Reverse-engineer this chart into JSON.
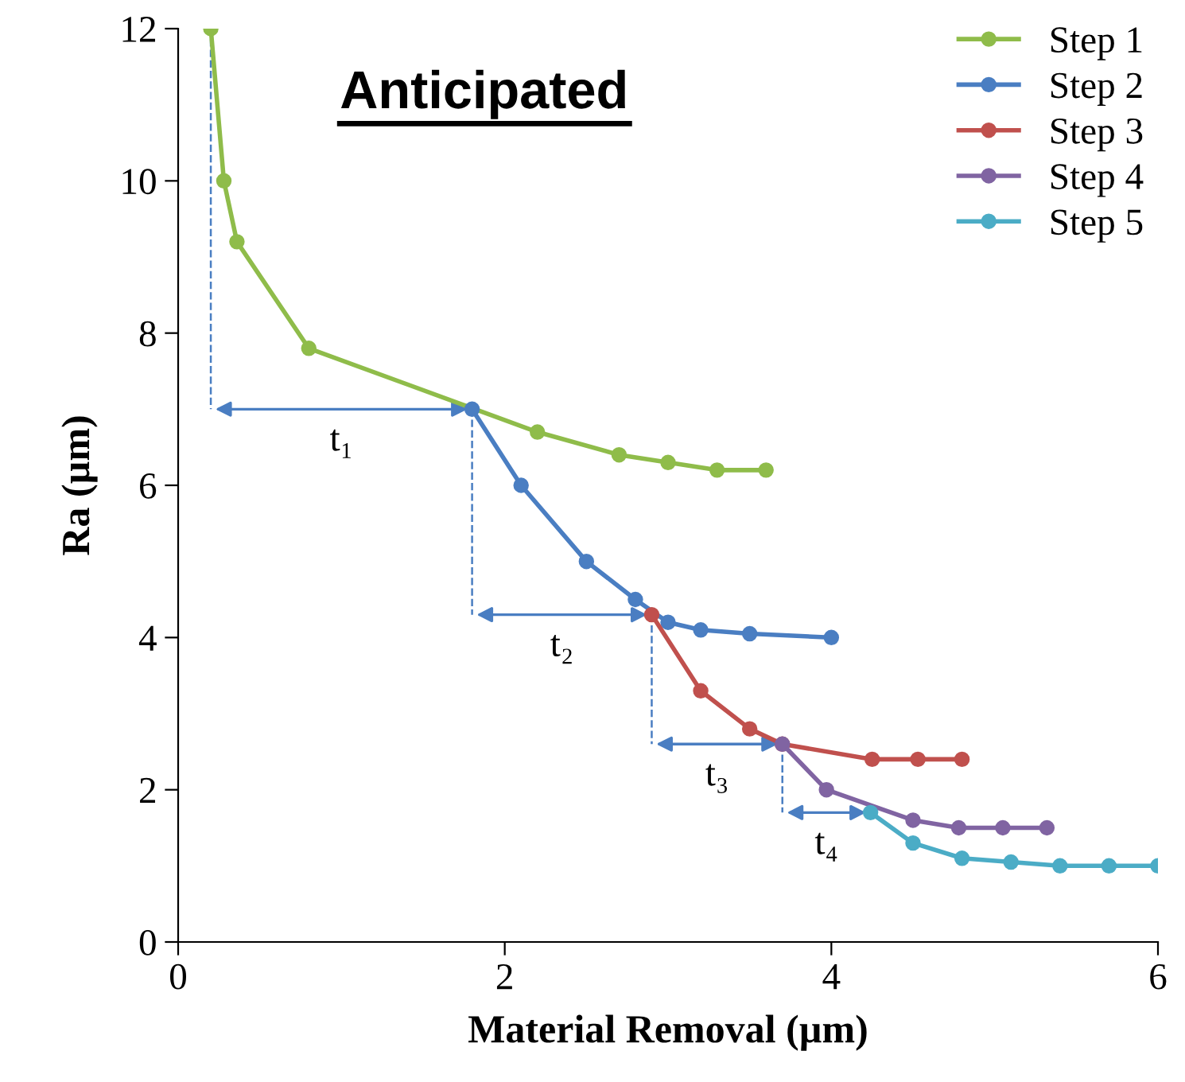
{
  "chart_data": {
    "type": "line",
    "title": "Anticipated",
    "xlabel": "Material Removal (µm)",
    "ylabel": "Ra (µm)",
    "xlim": [
      0,
      6
    ],
    "xticks": [
      0,
      2,
      4,
      6
    ],
    "ylim": [
      0,
      12
    ],
    "yticks": [
      0,
      2,
      4,
      6,
      8,
      10,
      12
    ],
    "grid": false,
    "legend": "top right",
    "marker": "circle",
    "line_style": "solid",
    "annotations": [
      "t₁",
      {
        "text": "t₂",
        "x": 2.9,
        "y": 4.3
      },
      {
        "text": "t₃",
        "x": 3.7,
        "y": 2.6
      },
      {
        "text": "t₄",
        "x": 4.24,
        "y": 1.7
      }
    ],
    "series": [
      {
        "name": "Step 1",
        "color": "#8fbc4a",
        "x": [
          0.2,
          0.28,
          0.36,
          0.8,
          2.2,
          2.7,
          3.0,
          3.3,
          3.6
        ],
        "values": [
          12,
          10,
          9.2,
          7.8,
          6.7,
          6.4,
          6.3,
          6.2,
          6.2
        ]
      },
      {
        "name": "Step 2",
        "color": "#4a7ec2",
        "x": [
          1.8,
          2.1,
          2.5,
          2.8,
          3.0,
          3.2,
          3.5,
          4.0
        ],
        "values": [
          7.0,
          6.0,
          5.0,
          4.5,
          4.2,
          4.1,
          4.05,
          4.0
        ]
      },
      {
        "name": "Step 3",
        "color": "#c0504d",
        "x": [
          2.9,
          3.2,
          3.5,
          3.7,
          4.25,
          4.53,
          4.8
        ],
        "values": [
          4.3,
          3.3,
          2.8,
          2.6,
          2.4,
          2.4,
          2.4
        ]
      },
      {
        "name": "Step 4",
        "color": "#8064a2",
        "x": [
          3.7,
          3.97,
          4.5,
          4.78,
          5.05,
          5.32
        ],
        "values": [
          2.6,
          2.0,
          1.6,
          1.5,
          1.5,
          1.5
        ]
      },
      {
        "name": "Step 5",
        "color": "#4bacc6",
        "x": [
          4.24,
          4.5,
          4.8,
          5.1,
          5.4,
          5.7,
          6.0
        ],
        "values": [
          1.7,
          1.3,
          1.1,
          1.05,
          1.0,
          1.0,
          1.0
        ]
      }
    ]
  }
}
